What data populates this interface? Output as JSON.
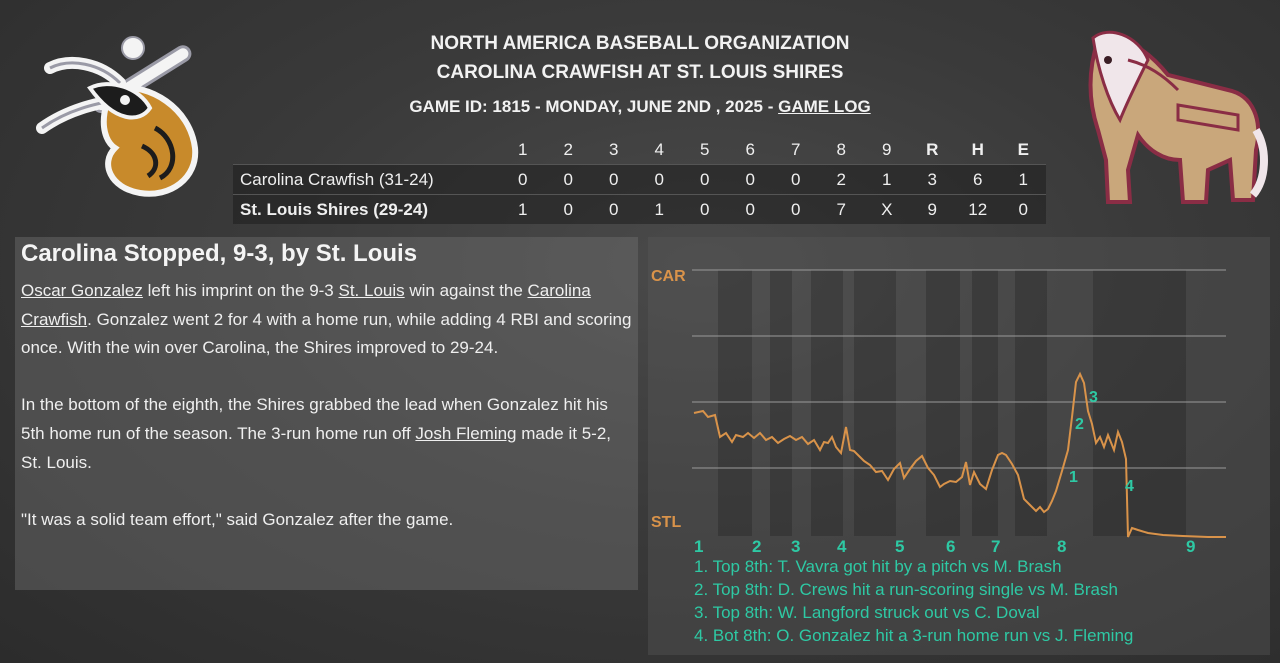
{
  "header": {
    "league": "NORTH AMERICA BASEBALL ORGANIZATION",
    "matchup": "CAROLINA CRAWFISH AT ST. LOUIS SHIRES",
    "game_info": "GAME ID: 1815 - MONDAY, JUNE 2ND , 2025 -",
    "game_log_link": "GAME LOG"
  },
  "linescore": {
    "columns": [
      "1",
      "2",
      "3",
      "4",
      "5",
      "6",
      "7",
      "8",
      "9",
      "R",
      "H",
      "E"
    ],
    "away": {
      "name": "Carolina Crawfish (31-24)",
      "cells": [
        "0",
        "0",
        "0",
        "0",
        "0",
        "0",
        "0",
        "2",
        "1",
        "3",
        "6",
        "1"
      ]
    },
    "home": {
      "name": "St. Louis Shires (29-24)",
      "cells": [
        "1",
        "0",
        "0",
        "1",
        "0",
        "0",
        "0",
        "7",
        "X",
        "9",
        "12",
        "0"
      ]
    }
  },
  "story": {
    "headline": "Carolina Stopped, 9-3, by St. Louis",
    "p1": {
      "a": "Oscar Gonzalez",
      "b": " left his imprint on the 9-3 ",
      "c": "St. Louis",
      "d": " win against the ",
      "e": "Carolina Crawfish",
      "f": ". Gonzalez went 2 for 4 with a home run, while adding 4 RBI and scoring once. With the win over Carolina, the Shires improved to 29-24."
    },
    "p2": {
      "a": "In the bottom of the eighth, the Shires grabbed the lead when Gonzalez hit his 5th home run of the season. The 3-run home run off ",
      "b": "Josh Fleming",
      "c": " made it 5-2, St. Louis."
    },
    "p3": "\"It was a solid team effort,\" said Gonzalez after the game."
  },
  "win_prob": {
    "top_label": "CAR",
    "bottom_label": "STL",
    "accent_color": "#d9934a",
    "note_color": "#2ec9a4",
    "innings": [
      "1",
      "2",
      "3",
      "4",
      "5",
      "6",
      "7",
      "8",
      "9"
    ],
    "markers": [
      "1",
      "2",
      "3",
      "4"
    ],
    "notes": [
      "1. Top 8th: T. Vavra got hit by a pitch vs M. Brash",
      "2. Top 8th: D. Crews hit a run-scoring single vs M. Brash",
      "3. Top 8th: W. Langford struck out vs C. Doval",
      "4. Bot 8th: O. Gonzalez hit a 3-run home run vs J. Fleming"
    ]
  }
}
